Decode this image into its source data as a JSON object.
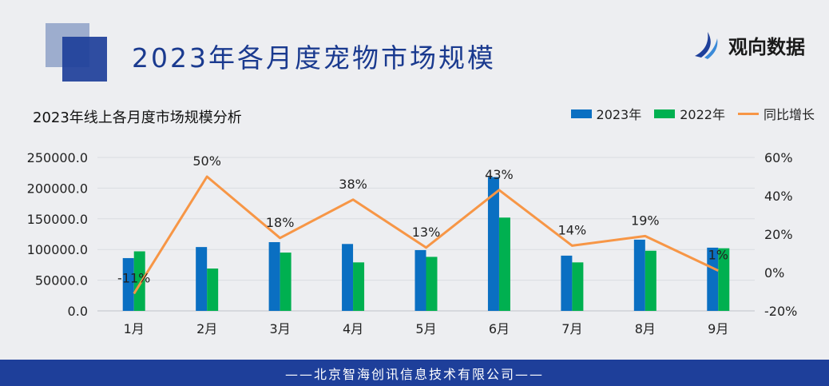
{
  "header": {
    "title": "2023年各月度宠物市场规模",
    "brand_name": "观向数据",
    "brand_icon": "brand-logo-icon"
  },
  "footer": {
    "text": "——北京智海创讯信息技术有限公司——"
  },
  "colors": {
    "bar_2023": "#0a6fc2",
    "bar_2022": "#00b050",
    "line_growth": "#f79646",
    "title": "#1a3a8f",
    "footer_bg": "#1e3f9a"
  },
  "chart_data": {
    "type": "bar+line",
    "title": "2023年线上各月度市场规模分析",
    "categories": [
      "1月",
      "2月",
      "3月",
      "4月",
      "5月",
      "6月",
      "7月",
      "8月",
      "9月"
    ],
    "series": [
      {
        "name": "2023年",
        "type": "bar",
        "axis": "left",
        "values": [
          86000,
          104000,
          112000,
          109000,
          99000,
          218000,
          90000,
          116000,
          103000
        ]
      },
      {
        "name": "2022年",
        "type": "bar",
        "axis": "left",
        "values": [
          97000,
          69000,
          95000,
          79000,
          88000,
          152000,
          79000,
          98000,
          102000
        ]
      },
      {
        "name": "同比增长",
        "type": "line",
        "axis": "right",
        "values": [
          -11,
          50,
          18,
          38,
          13,
          43,
          14,
          19,
          1
        ]
      }
    ],
    "data_labels": [
      "-11%",
      "50%",
      "18%",
      "38%",
      "13%",
      "43%",
      "14%",
      "19%",
      "1%"
    ],
    "y_left": {
      "min": 0,
      "max": 250000,
      "ticks": [
        "0.0",
        "50000.0",
        "100000.0",
        "150000.0",
        "200000.0",
        "250000.0"
      ]
    },
    "y_right": {
      "min": -20,
      "max": 60,
      "ticks": [
        "-20%",
        "0%",
        "20%",
        "40%",
        "60%"
      ]
    },
    "grid": true,
    "legend_position": "top-right"
  }
}
